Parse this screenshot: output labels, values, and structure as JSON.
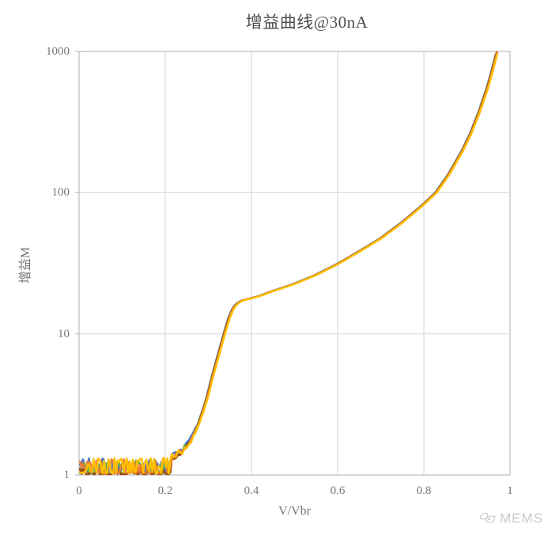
{
  "chart_data": {
    "type": "line",
    "title": "增益曲线@30nA",
    "xlabel": "V/Vbr",
    "ylabel": "增益M",
    "grid": true,
    "legend": "none",
    "x_axis": {
      "min": 0,
      "max": 1,
      "tick_values": [
        0,
        0.2,
        0.4,
        0.6,
        0.8,
        1
      ],
      "ticks": [
        "0",
        "0.2",
        "0.4",
        "0.6",
        "0.8",
        "1"
      ]
    },
    "y_axis": {
      "scale": "log",
      "min": 1,
      "max": 1000,
      "tick_values": [
        1,
        10,
        100,
        1000
      ],
      "ticks": [
        "1",
        "10",
        "100",
        "1000"
      ]
    },
    "description": "Multiple overlapping gain-vs-normalized-voltage curves; noisy band near gain 1 below V/Vbr≈0.22, steep avalanche rise to ~17 at V/Vbr≈0.37, then smooth growth reaching 1000 near V/Vbr≈0.97",
    "main_curve": [
      [
        0.22,
        1.25
      ],
      [
        0.24,
        1.4
      ],
      [
        0.26,
        1.7
      ],
      [
        0.28,
        2.3
      ],
      [
        0.3,
        3.6
      ],
      [
        0.31,
        4.8
      ],
      [
        0.32,
        6.2
      ],
      [
        0.33,
        8.0
      ],
      [
        0.34,
        10.3
      ],
      [
        0.35,
        13.0
      ],
      [
        0.36,
        15.3
      ],
      [
        0.37,
        16.5
      ],
      [
        0.38,
        17.2
      ],
      [
        0.4,
        17.8
      ],
      [
        0.42,
        18.5
      ],
      [
        0.45,
        20.0
      ],
      [
        0.5,
        22.5
      ],
      [
        0.55,
        26.0
      ],
      [
        0.6,
        31.0
      ],
      [
        0.65,
        38.0
      ],
      [
        0.7,
        47.0
      ],
      [
        0.75,
        61.0
      ],
      [
        0.8,
        82.0
      ],
      [
        0.83,
        100.0
      ],
      [
        0.86,
        135.0
      ],
      [
        0.89,
        195.0
      ],
      [
        0.91,
        260.0
      ],
      [
        0.93,
        370.0
      ],
      [
        0.95,
        560.0
      ],
      [
        0.96,
        720.0
      ],
      [
        0.972,
        1000.0
      ]
    ],
    "noise_region": {
      "x_start": 0,
      "x_end": 0.215,
      "y_base": 1.0,
      "y_max": 1.35
    },
    "series": [
      {
        "name": "gray",
        "color": "#A5A5A5",
        "seed": 11,
        "noise_amp": 0.22,
        "y_base": 1.03,
        "x_shift": -0.004
      },
      {
        "name": "blue",
        "color": "#4472C4",
        "seed": 5,
        "noise_amp": 0.3,
        "y_base": 1.02,
        "x_shift": -0.0035
      },
      {
        "name": "green",
        "color": "#70AD47",
        "seed": 9,
        "noise_amp": 0.26,
        "y_base": 1.02,
        "x_shift": -0.003
      },
      {
        "name": "brown",
        "color": "#9E480E",
        "seed": 3,
        "noise_amp": 0.1,
        "y_base": 1.01,
        "x_shift": -0.0025
      },
      {
        "name": "orange",
        "color": "#ED7D31",
        "seed": 7,
        "noise_amp": 0.28,
        "y_base": 1.02,
        "x_shift": -0.0015
      },
      {
        "name": "yellow",
        "color": "#FFC000",
        "seed": 13,
        "noise_amp": 0.3,
        "y_base": 1.02,
        "x_shift": 0
      }
    ],
    "colors": {
      "grid": "#D9D9D9",
      "axis": "#BFBFBF",
      "title_text": "#4d4d4d",
      "tick_text": "#767676",
      "watermark": "#c9c9c9"
    }
  },
  "watermark": {
    "text": "MEMS"
  }
}
